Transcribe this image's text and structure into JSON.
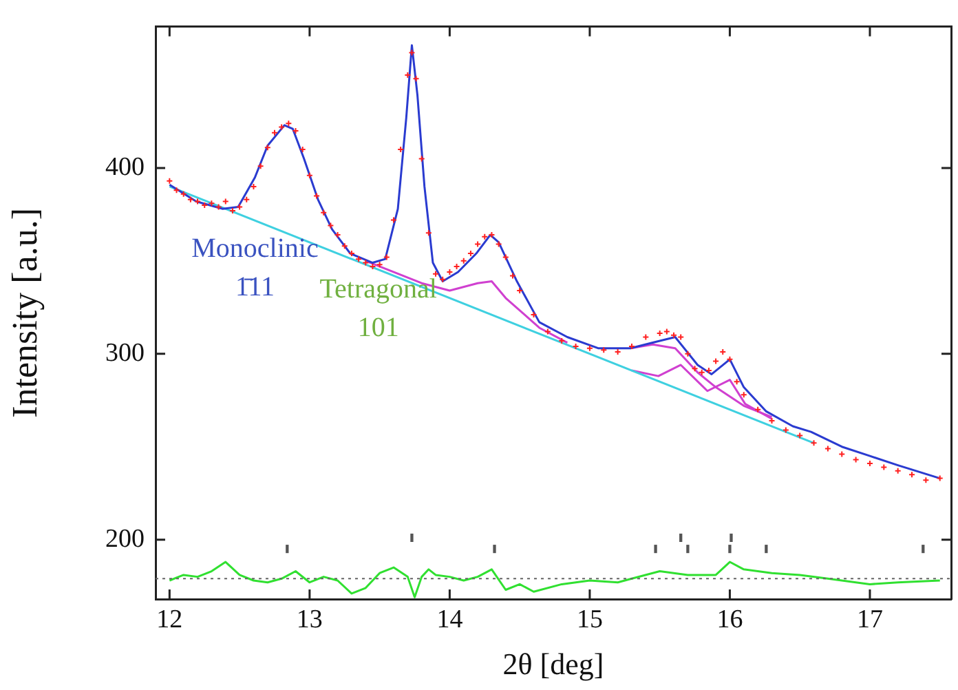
{
  "chart_data": {
    "type": "line",
    "xlabel": "2θ [deg]",
    "ylabel": "Intensity [a.u.]",
    "xlim": [
      11.9,
      17.58
    ],
    "xticks": [
      12,
      13,
      14,
      15,
      16,
      17
    ],
    "ylim": [
      168,
      476
    ],
    "yticks": [
      200,
      300,
      400
    ],
    "grid": false,
    "legend": false,
    "line_style": "solid",
    "series": [
      {
        "type": "scatter",
        "marker": "cross",
        "color": "#ff2020",
        "x": [
          12.0,
          12.05,
          12.1,
          12.15,
          12.2,
          12.25,
          12.3,
          12.35,
          12.4,
          12.45,
          12.5,
          12.55,
          12.6,
          12.65,
          12.7,
          12.75,
          12.8,
          12.85,
          12.9,
          12.95,
          13.0,
          13.05,
          13.1,
          13.15,
          13.2,
          13.25,
          13.3,
          13.35,
          13.4,
          13.45,
          13.5,
          13.55,
          13.6,
          13.65,
          13.7,
          13.73,
          13.76,
          13.8,
          13.85,
          13.9,
          13.95,
          14.0,
          14.05,
          14.1,
          14.15,
          14.2,
          14.25,
          14.3,
          14.35,
          14.4,
          14.45,
          14.5,
          14.6,
          14.7,
          14.8,
          14.9,
          15.0,
          15.1,
          15.2,
          15.3,
          15.4,
          15.5,
          15.55,
          15.6,
          15.65,
          15.7,
          15.75,
          15.8,
          15.85,
          15.9,
          15.95,
          16.0,
          16.05,
          16.1,
          16.2,
          16.3,
          16.4,
          16.5,
          16.6,
          16.7,
          16.8,
          16.9,
          17.0,
          17.1,
          17.2,
          17.3,
          17.4,
          17.5
        ],
        "values": [
          393,
          388,
          386,
          383,
          382,
          380,
          381,
          379,
          382,
          377,
          379,
          383,
          390,
          401,
          411,
          419,
          422,
          424,
          420,
          410,
          396,
          385,
          376,
          369,
          364,
          358,
          354,
          351,
          349,
          347,
          348,
          352,
          372,
          410,
          450,
          462,
          448,
          405,
          365,
          343,
          340,
          344,
          347,
          350,
          354,
          359,
          363,
          364,
          359,
          352,
          342,
          334,
          321,
          312,
          307,
          304,
          303,
          302,
          301,
          304,
          309,
          311,
          312,
          310,
          309,
          300,
          292,
          290,
          291,
          296,
          301,
          297,
          285,
          278,
          270,
          264,
          259,
          256,
          252,
          249,
          246,
          243,
          241,
          239,
          237,
          235,
          232,
          233
        ]
      },
      {
        "marker": "none",
        "color": "#2a3bd0",
        "x": [
          12.0,
          12.19,
          12.38,
          12.49,
          12.61,
          12.7,
          12.82,
          12.88,
          12.96,
          13.06,
          13.16,
          13.29,
          13.45,
          13.54,
          13.63,
          13.69,
          13.73,
          13.77,
          13.82,
          13.88,
          13.95,
          14.06,
          14.19,
          14.29,
          14.35,
          14.48,
          14.64,
          14.84,
          15.06,
          15.29,
          15.45,
          15.61,
          15.77,
          15.87,
          16.0,
          16.1,
          16.26,
          16.45,
          16.58,
          16.8,
          17.0,
          17.2,
          17.5
        ],
        "values": [
          391,
          382,
          378,
          379,
          395,
          412,
          423,
          421,
          405,
          383,
          367,
          354,
          349,
          351,
          378,
          427,
          466,
          439,
          390,
          349,
          339,
          344,
          354,
          364,
          360,
          339,
          317,
          309,
          303,
          303,
          306,
          309,
          294,
          289,
          297,
          282,
          269,
          261,
          258,
          250,
          245,
          240,
          233
        ]
      },
      {
        "marker": "none",
        "color": "#3fd0e0",
        "x": [
          12.0,
          16.6
        ],
        "values": [
          390,
          252
        ]
      },
      {
        "marker": "none",
        "color": "#d040d0",
        "x": [
          13.4,
          13.8,
          14.0,
          14.2,
          14.3,
          14.4,
          14.64,
          14.84
        ],
        "values": [
          350,
          338,
          334,
          338,
          339,
          330,
          314,
          306
        ]
      },
      {
        "marker": "none",
        "color": "#d040d0",
        "x": [
          15.29,
          15.45,
          15.61,
          15.77,
          15.9,
          16.1,
          16.3
        ],
        "values": [
          303,
          305,
          303,
          290,
          282,
          272,
          266
        ]
      },
      {
        "marker": "none",
        "color": "#d040d0",
        "x": [
          15.3,
          15.49,
          15.65,
          15.84,
          16.0,
          16.11,
          16.3
        ],
        "values": [
          291,
          288,
          294,
          280,
          286,
          273,
          265
        ]
      },
      {
        "marker": "none",
        "color": "#30e030",
        "x": [
          12.0,
          12.1,
          12.2,
          12.3,
          12.4,
          12.5,
          12.6,
          12.7,
          12.8,
          12.9,
          13.0,
          13.1,
          13.2,
          13.3,
          13.4,
          13.5,
          13.6,
          13.7,
          13.75,
          13.8,
          13.85,
          13.9,
          14.0,
          14.1,
          14.2,
          14.3,
          14.4,
          14.5,
          14.6,
          14.8,
          15.0,
          15.2,
          15.3,
          15.5,
          15.7,
          15.9,
          16.0,
          16.1,
          16.3,
          16.5,
          16.7,
          17.0,
          17.2,
          17.5
        ],
        "values": [
          178,
          181,
          180,
          183,
          188,
          181,
          178,
          177,
          179,
          183,
          177,
          180,
          178,
          171,
          174,
          182,
          185,
          180,
          169,
          180,
          184,
          181,
          180,
          178,
          180,
          184,
          173,
          176,
          172,
          176,
          178,
          177,
          179,
          183,
          181,
          181,
          188,
          184,
          182,
          181,
          179,
          176,
          177,
          178
        ]
      },
      {
        "type": "bar",
        "color": "#555555",
        "x": [
          12.84,
          13.73,
          14.32,
          15.47,
          15.65,
          15.7,
          16.0,
          16.01,
          16.26,
          17.38
        ],
        "base": [
          193,
          199,
          193,
          193,
          199,
          193,
          193,
          199,
          193,
          193
        ],
        "values": [
          4,
          4,
          4,
          4,
          4,
          4,
          4,
          4,
          4,
          4
        ]
      }
    ],
    "ref_lines": [
      {
        "axis": "y",
        "value": 179,
        "line_style": "dotted",
        "color": "#666666"
      }
    ],
    "annotations": [
      "Monoclinic\n1̄11",
      "Tetragonal\n101"
    ]
  }
}
